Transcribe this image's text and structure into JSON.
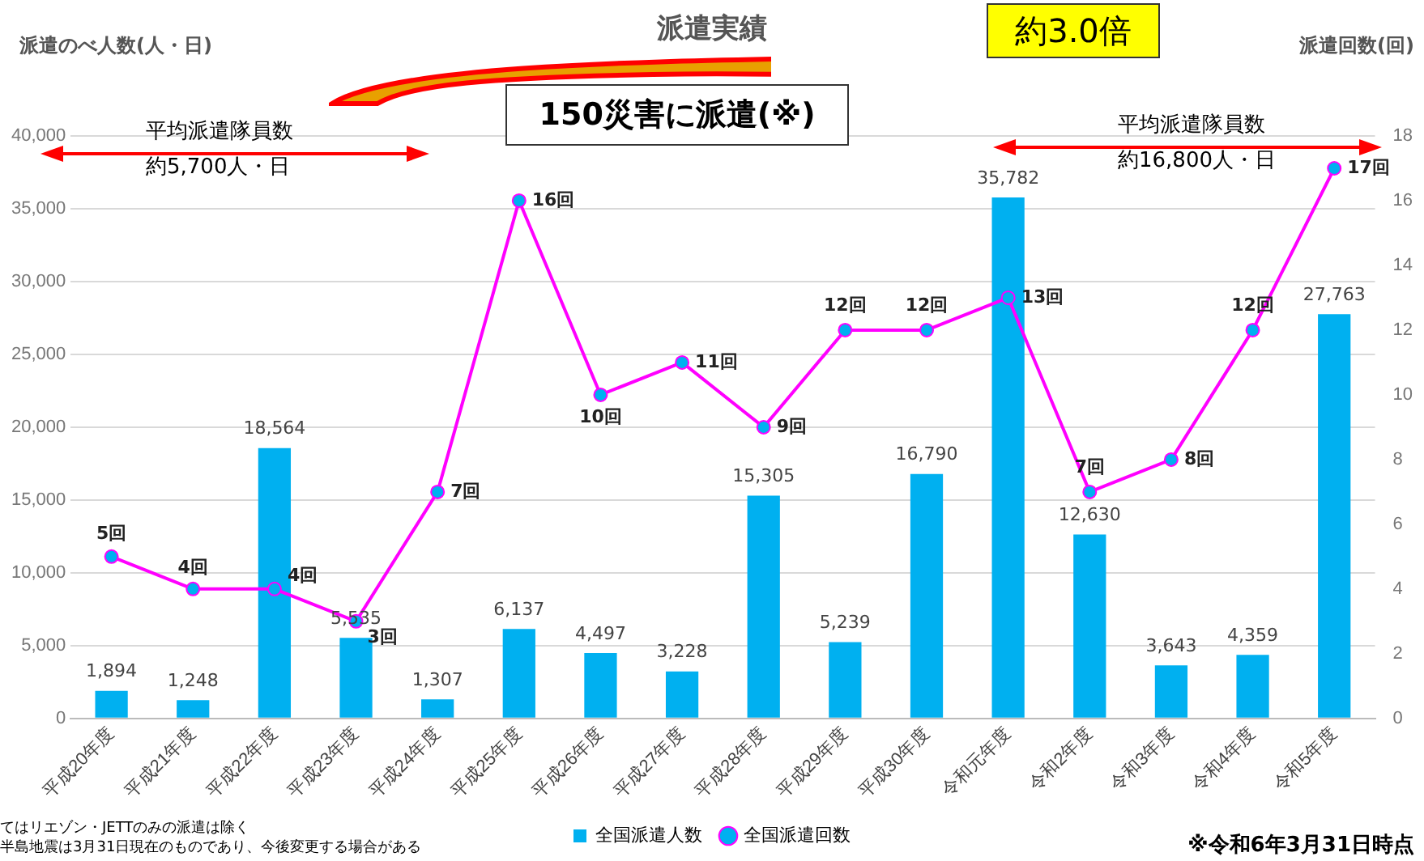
{
  "chart_data": {
    "type": "bar",
    "title": "派遣実績",
    "ylabel": "派遣のべ人数(人・日)",
    "y2label": "派遣回数(回)",
    "categories": [
      "平成20年度",
      "平成21年度",
      "平成22年度",
      "平成23年度",
      "平成24年度",
      "平成25年度",
      "平成26年度",
      "平成27年度",
      "平成28年度",
      "平成29年度",
      "平成30年度",
      "令和元年度",
      "令和2年度",
      "令和3年度",
      "令和4年度",
      "令和5年度"
    ],
    "series": [
      {
        "name": "全国派遣人数",
        "color": "#00b0f0",
        "values": [
          1894,
          1248,
          18564,
          5535,
          1307,
          6137,
          4497,
          3228,
          15305,
          5239,
          16790,
          35782,
          12630,
          3643,
          4359,
          27763
        ],
        "value_labels": [
          "1,894",
          "1,248",
          "18,564",
          "5,535",
          "1,307",
          "6,137",
          "4,497",
          "3,228",
          "15,305",
          "5,239",
          "16,790",
          "35,782",
          "12,630",
          "3,643",
          "4,359",
          "27,763"
        ]
      },
      {
        "name": "全国派遣回数",
        "type": "line",
        "axis": "y2",
        "color": "#ff00ff",
        "values": [
          5,
          4,
          4,
          3,
          7,
          16,
          10,
          11,
          9,
          12,
          12,
          13,
          7,
          8,
          12,
          17
        ],
        "value_labels": [
          "5回",
          "4回",
          "4回",
          "3回",
          "7回",
          "16回",
          "10回",
          "11回",
          "9回",
          "12回",
          "12回",
          "13回",
          "7回",
          "8回",
          "12回",
          "17回"
        ]
      }
    ],
    "ylim": [
      0,
      40000
    ],
    "yticks": [
      0,
      {
        "value": 5000,
        "label": "5,000"
      },
      {
        "value": 10000,
        "label": "10,000"
      },
      {
        "value": 15000,
        "label": "15,000"
      },
      {
        "value": 20000,
        "label": "20,000"
      },
      {
        "value": 25000,
        "label": "25,000"
      },
      {
        "value": 30000,
        "label": "30,000"
      },
      {
        "value": 35000,
        "label": "35,000"
      },
      {
        "value": 40000,
        "label": "40,000"
      }
    ],
    "y2lim": [
      0,
      18
    ],
    "y2ticks": [
      0,
      2,
      4,
      6,
      8,
      10,
      12,
      14,
      16,
      18
    ],
    "grid": "y",
    "legend": "bottom",
    "marker": "circle",
    "line_style": "solid",
    "annotations": [
      "150災害に派遣(※)",
      "約3.0倍",
      "平均派遣隊員数",
      "約5,700人・日",
      "平均派遣隊員数",
      "約16,800人・日",
      "※令和6年3月31日時点",
      "てはリエゾン・JETTのみの派遣は除く",
      "半島地震は3月31日現在のものであり、今後変更する場合がある"
    ]
  }
}
